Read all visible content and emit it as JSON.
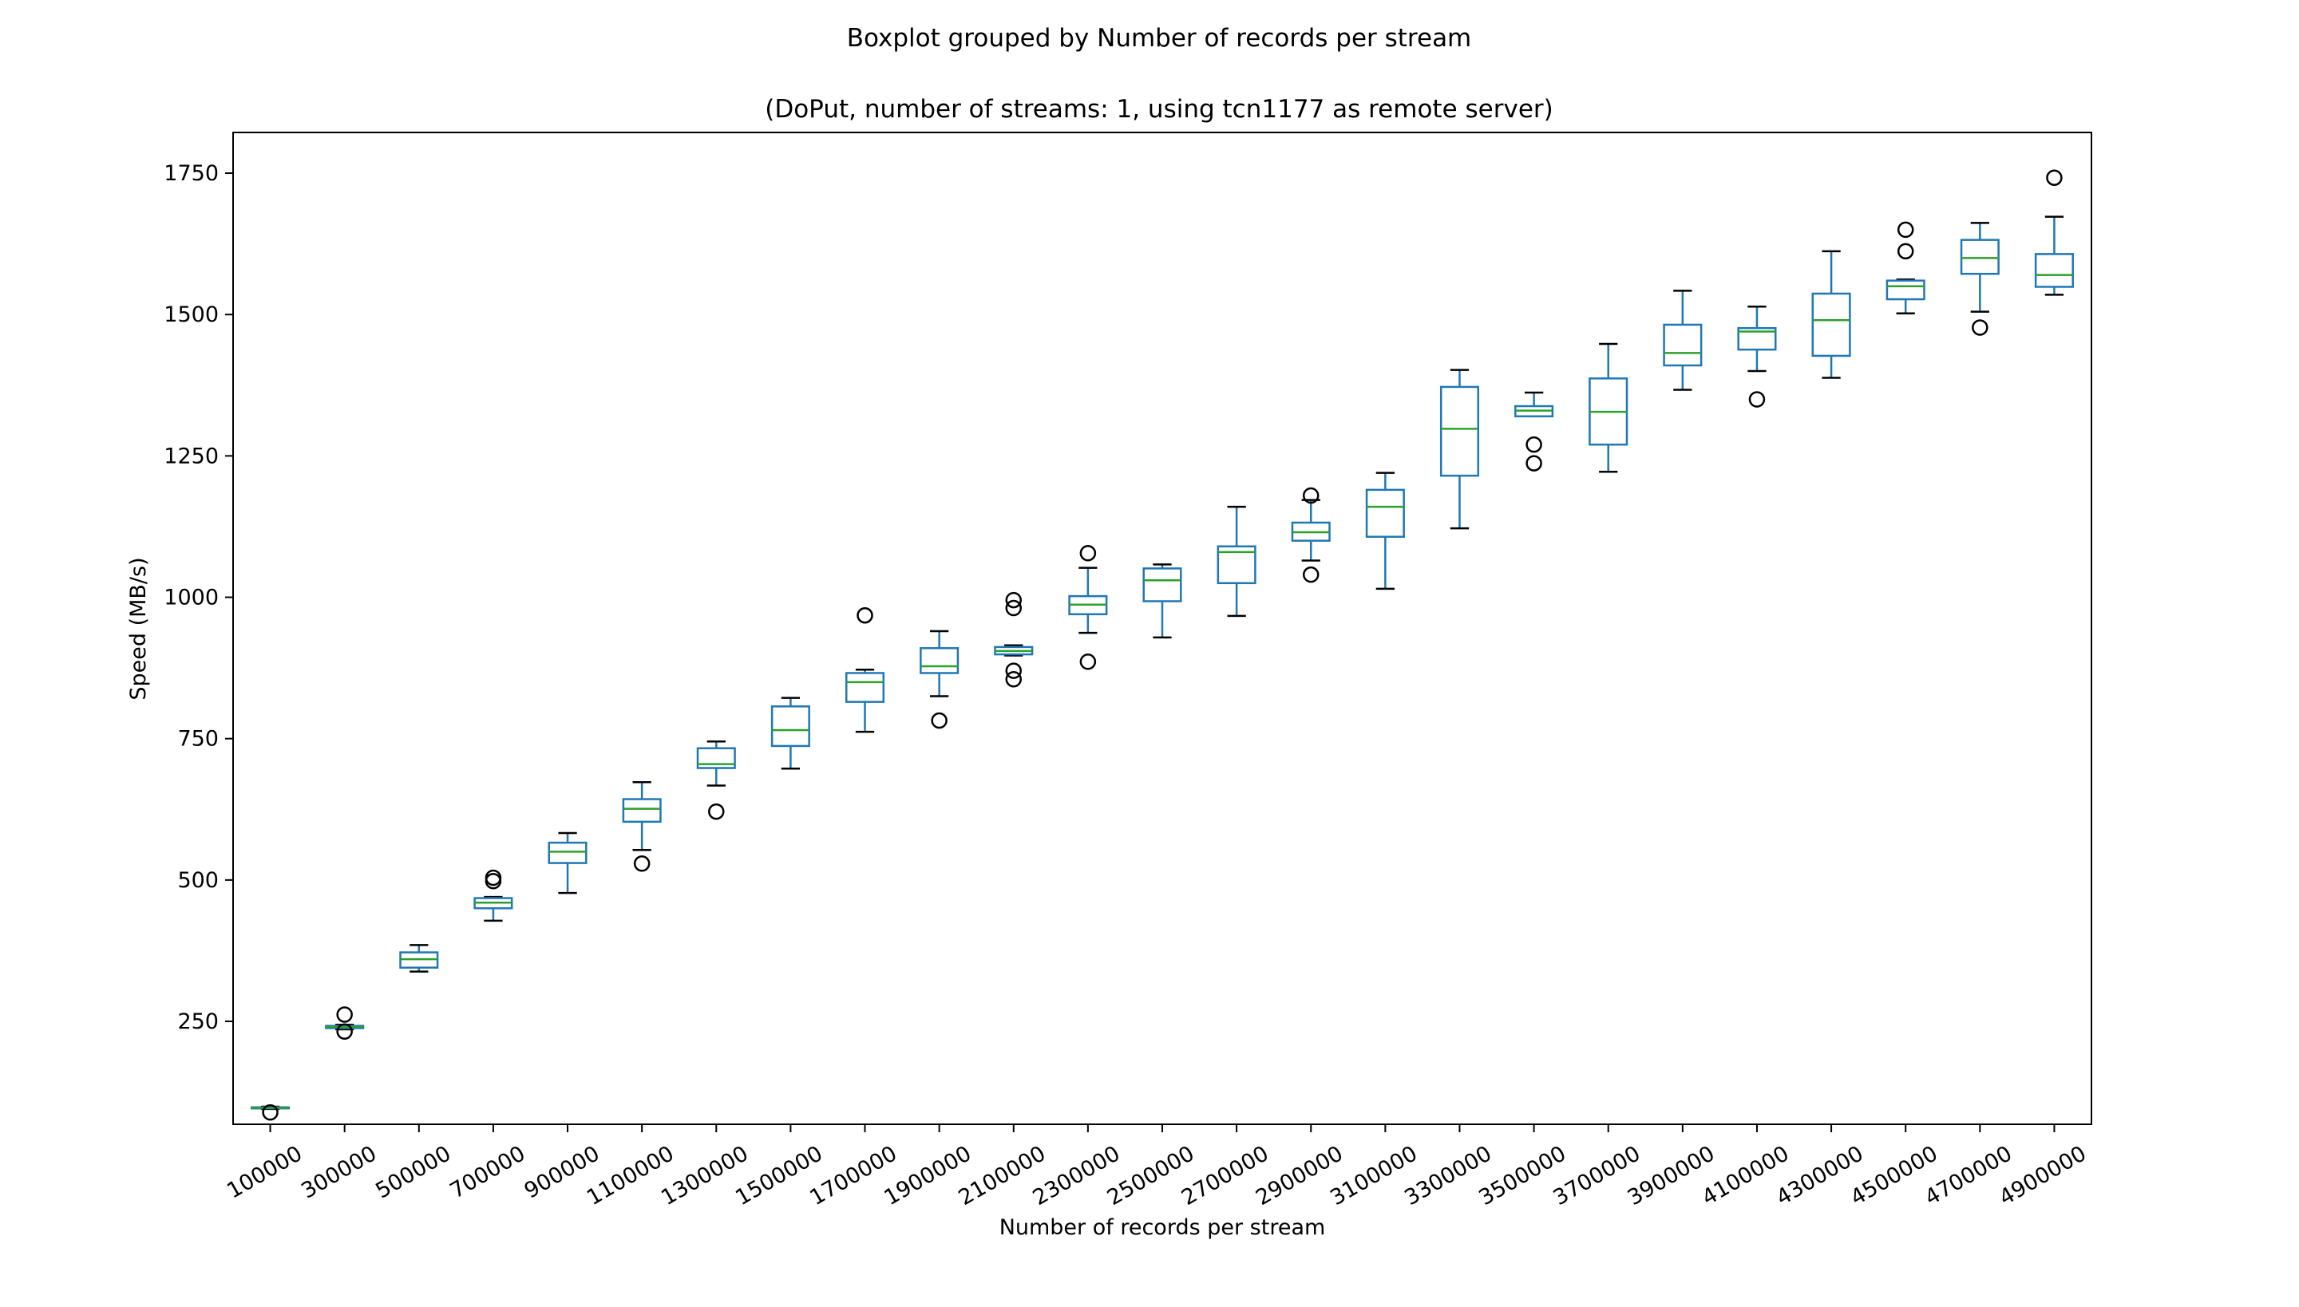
{
  "chart_data": {
    "type": "boxplot",
    "title": "Boxplot grouped by Number of records per stream",
    "subtitle": "(DoPut, number of streams: 1, using tcn1177 as remote server)",
    "xlabel": "Number of records per stream",
    "ylabel": "Speed (MB/s)",
    "ylim": [
      68,
      1822
    ],
    "yticks": [
      250,
      500,
      750,
      1000,
      1250,
      1500,
      1750
    ],
    "grid": false,
    "colors": {
      "box": "#1f77b4",
      "median": "#2ca02c",
      "whisker": "#1f77b4",
      "cap": "#000000",
      "flier": "#000000"
    },
    "categories": [
      "100000",
      "300000",
      "500000",
      "700000",
      "900000",
      "1100000",
      "1300000",
      "1500000",
      "1700000",
      "1900000",
      "2100000",
      "2300000",
      "2500000",
      "2700000",
      "2900000",
      "3100000",
      "3300000",
      "3500000",
      "3700000",
      "3900000",
      "4100000",
      "4300000",
      "4500000",
      "4700000",
      "4900000"
    ],
    "boxes": [
      {
        "category": "100000",
        "whislo": 95,
        "q1": 96,
        "med": 97,
        "q3": 98,
        "whishi": 99,
        "fliers": [
          89
        ]
      },
      {
        "category": "300000",
        "whislo": 236,
        "q1": 238,
        "med": 240,
        "q3": 242,
        "whishi": 244,
        "fliers": [
          262,
          232
        ]
      },
      {
        "category": "500000",
        "whislo": 338,
        "q1": 345,
        "med": 360,
        "q3": 372,
        "whishi": 385,
        "fliers": []
      },
      {
        "category": "700000",
        "whislo": 428,
        "q1": 450,
        "med": 460,
        "q3": 468,
        "whishi": 470,
        "fliers": [
          504,
          498
        ]
      },
      {
        "category": "900000",
        "whislo": 477,
        "q1": 530,
        "med": 550,
        "q3": 566,
        "whishi": 583,
        "fliers": []
      },
      {
        "category": "1100000",
        "whislo": 553,
        "q1": 603,
        "med": 626,
        "q3": 643,
        "whishi": 673,
        "fliers": [
          529
        ]
      },
      {
        "category": "1300000",
        "whislo": 667,
        "q1": 698,
        "med": 705,
        "q3": 733,
        "whishi": 745,
        "fliers": [
          621
        ]
      },
      {
        "category": "1500000",
        "whislo": 697,
        "q1": 737,
        "med": 765,
        "q3": 807,
        "whishi": 822,
        "fliers": []
      },
      {
        "category": "1700000",
        "whislo": 762,
        "q1": 815,
        "med": 850,
        "q3": 866,
        "whishi": 872,
        "fliers": [
          968
        ]
      },
      {
        "category": "1900000",
        "whislo": 825,
        "q1": 866,
        "med": 878,
        "q3": 910,
        "whishi": 940,
        "fliers": [
          782
        ]
      },
      {
        "category": "2100000",
        "whislo": 897,
        "q1": 899,
        "med": 905,
        "q3": 912,
        "whishi": 915,
        "fliers": [
          995,
          981,
          870,
          855
        ]
      },
      {
        "category": "2300000",
        "whislo": 937,
        "q1": 970,
        "med": 987,
        "q3": 1002,
        "whishi": 1052,
        "fliers": [
          1078,
          886
        ]
      },
      {
        "category": "2500000",
        "whislo": 929,
        "q1": 993,
        "med": 1030,
        "q3": 1051,
        "whishi": 1058,
        "fliers": []
      },
      {
        "category": "2700000",
        "whislo": 967,
        "q1": 1025,
        "med": 1080,
        "q3": 1090,
        "whishi": 1160,
        "fliers": []
      },
      {
        "category": "2900000",
        "whislo": 1065,
        "q1": 1100,
        "med": 1115,
        "q3": 1132,
        "whishi": 1172,
        "fliers": [
          1180,
          1040
        ]
      },
      {
        "category": "3100000",
        "whislo": 1015,
        "q1": 1107,
        "med": 1160,
        "q3": 1190,
        "whishi": 1220,
        "fliers": []
      },
      {
        "category": "3300000",
        "whislo": 1122,
        "q1": 1215,
        "med": 1298,
        "q3": 1372,
        "whishi": 1402,
        "fliers": []
      },
      {
        "category": "3500000",
        "whislo": 1320,
        "q1": 1320,
        "med": 1330,
        "q3": 1338,
        "whishi": 1362,
        "fliers": [
          1270,
          1237
        ]
      },
      {
        "category": "3700000",
        "whislo": 1222,
        "q1": 1270,
        "med": 1328,
        "q3": 1387,
        "whishi": 1448,
        "fliers": []
      },
      {
        "category": "3900000",
        "whislo": 1367,
        "q1": 1410,
        "med": 1432,
        "q3": 1482,
        "whishi": 1542,
        "fliers": []
      },
      {
        "category": "4100000",
        "whislo": 1400,
        "q1": 1438,
        "med": 1470,
        "q3": 1476,
        "whishi": 1514,
        "fliers": [
          1350
        ]
      },
      {
        "category": "4300000",
        "whislo": 1388,
        "q1": 1427,
        "med": 1490,
        "q3": 1537,
        "whishi": 1612,
        "fliers": []
      },
      {
        "category": "4500000",
        "whislo": 1502,
        "q1": 1527,
        "med": 1550,
        "q3": 1560,
        "whishi": 1562,
        "fliers": [
          1650,
          1612
        ]
      },
      {
        "category": "4700000",
        "whislo": 1505,
        "q1": 1572,
        "med": 1600,
        "q3": 1632,
        "whishi": 1662,
        "fliers": [
          1477
        ]
      },
      {
        "category": "4900000",
        "whislo": 1535,
        "q1": 1549,
        "med": 1570,
        "q3": 1607,
        "whishi": 1673,
        "fliers": [
          1742
        ]
      }
    ]
  }
}
